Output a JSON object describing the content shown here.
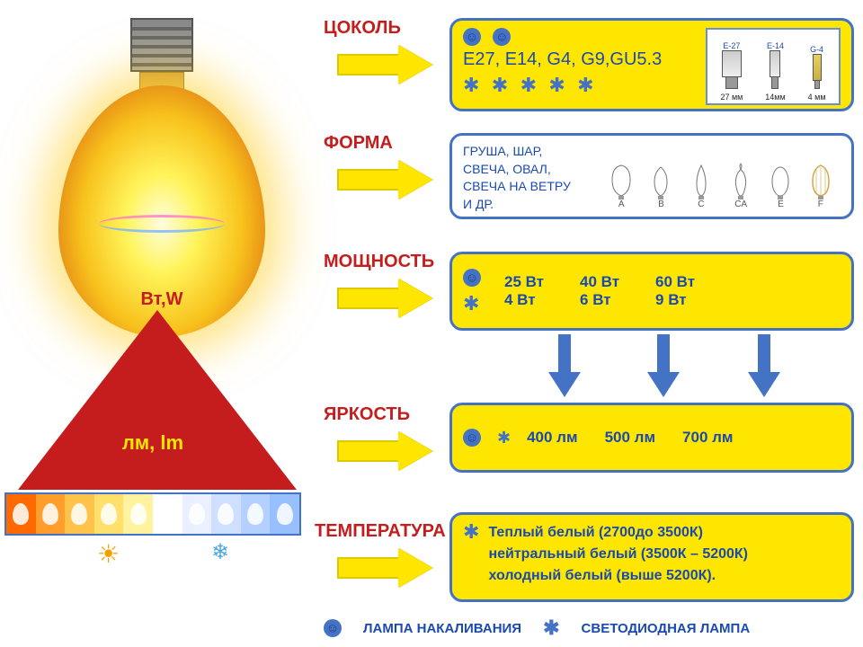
{
  "colors": {
    "accent_red": "#c51d1d",
    "accent_blue": "#4472c4",
    "accent_deep_blue": "#1a4ab0",
    "panel_yellow": "#ffe600",
    "arrow_border": "#e0c800",
    "sun": "#f2a100",
    "snow": "#4aa8e0"
  },
  "bulb": {
    "watt_label": "Вт,W",
    "lumen_label": "лм,  lm"
  },
  "color_scale": {
    "stops": [
      "#ff6a00",
      "#ff9e2a",
      "#ffc24a",
      "#ffe06a",
      "#fff3a0",
      "#ffffff",
      "#eaf0ff",
      "#cfe0ff",
      "#b4d0ff",
      "#98c0ff"
    ],
    "warm_icon": "☀",
    "cold_icon": "❄"
  },
  "sections": {
    "socket": {
      "label": "ЦОКОЛЬ",
      "text": "Е27, Е14, G4, G9,GU5.3",
      "types": [
        {
          "name": "E-27",
          "dim": "27 мм",
          "narrow": false,
          "pin": false
        },
        {
          "name": "E-14",
          "dim": "14мм",
          "narrow": true,
          "pin": false
        },
        {
          "name": "G-4",
          "dim": "4 мм",
          "narrow": false,
          "pin": true
        }
      ]
    },
    "shape": {
      "label": "ФОРМА",
      "text": "ГРУША, ШАР,\n  СВЕЧА, ОВАЛ,\n  СВЕЧА НА ВЕТРУ\nИ ДР.",
      "variants": [
        "A",
        "B",
        "C",
        "CA",
        "E",
        "F"
      ]
    },
    "power": {
      "label": "МОЩНОСТЬ",
      "columns": [
        {
          "incand": "25 Вт",
          "led": "4 Вт"
        },
        {
          "incand": "40 Вт",
          "led": "6 Вт"
        },
        {
          "incand": "60 Вт",
          "led": "9 Вт"
        }
      ]
    },
    "brightness": {
      "label": "ЯРКОСТЬ",
      "values": [
        "400 лм",
        "500 лм",
        "700 лм"
      ]
    },
    "temperature": {
      "label": "ТЕМПЕРАТУРА",
      "lines": [
        "Теплый белый (2700до 3500К)",
        "нейтральный белый (3500К – 5200К)",
        "холодный белый (выше 5200К)."
      ]
    }
  },
  "legend": {
    "incandescent": "ЛАМПА НАКАЛИВАНИЯ",
    "led": "СВЕТОДИОДНАЯ ЛАМПА"
  }
}
